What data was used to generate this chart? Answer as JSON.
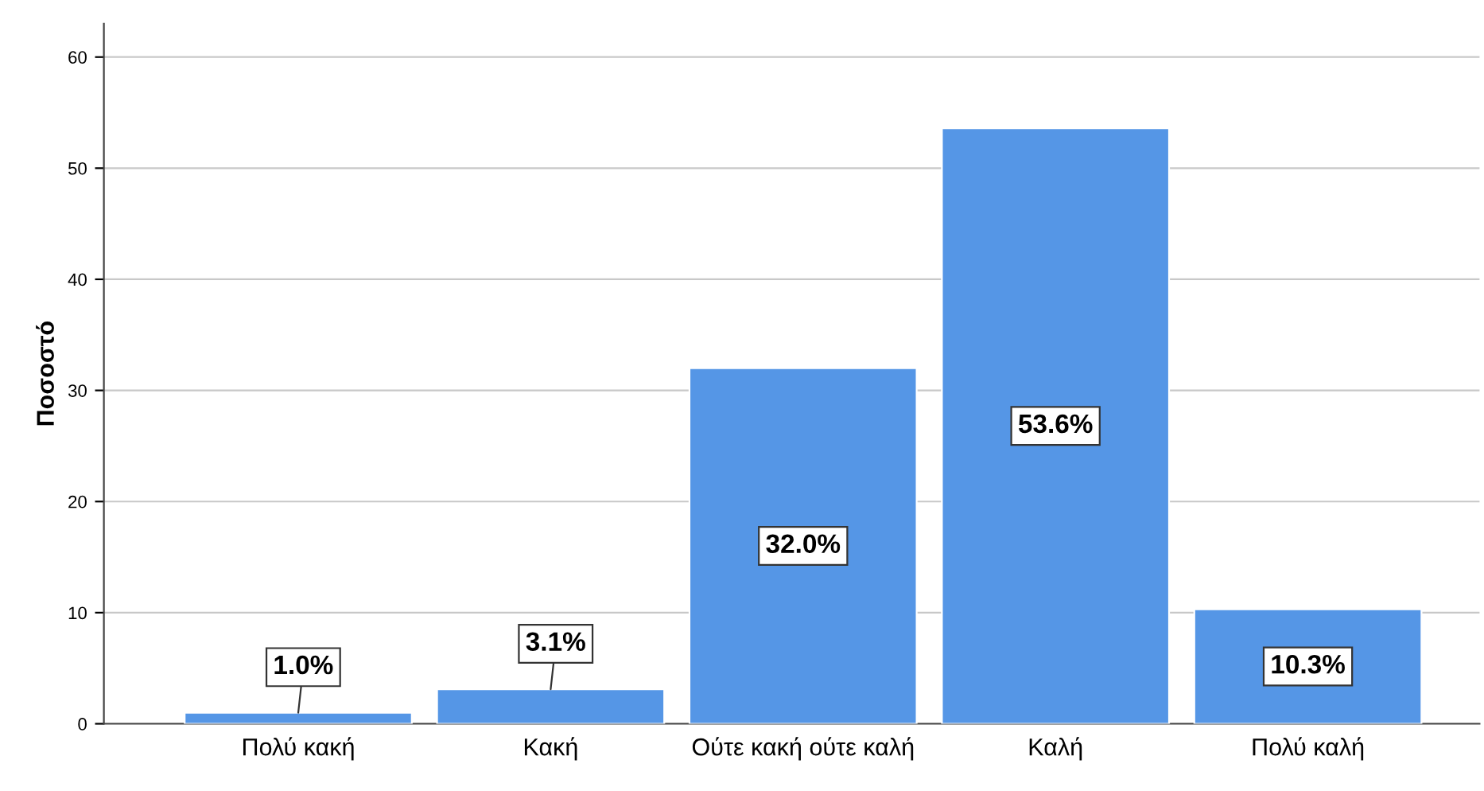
{
  "chart_data": {
    "type": "bar",
    "ylabel": "Ποσοστό",
    "categories": [
      "Πολύ κακή",
      "Κακή",
      "Ούτε κακή ούτε καλή",
      "Καλή",
      "Πολύ καλή"
    ],
    "values": [
      1.0,
      3.1,
      32.0,
      53.6,
      10.3
    ],
    "value_labels": [
      "1.0%",
      "3.1%",
      "32.0%",
      "53.6%",
      "10.3%"
    ],
    "color": "#5596e6",
    "ylim": [
      0,
      63
    ],
    "yticks": [
      0,
      10,
      20,
      30,
      40,
      50,
      60
    ],
    "grid": "y",
    "legend": false
  }
}
